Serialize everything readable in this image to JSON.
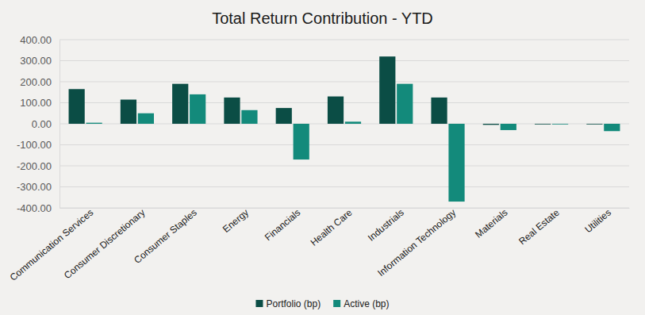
{
  "chart_data": {
    "type": "bar",
    "title": "Total Return Contribution - YTD",
    "categories": [
      "Communication Services",
      "Consumer Discretionary",
      "Consumer Staples",
      "Energy",
      "Financials",
      "Health Care",
      "Industrials",
      "Information Technology",
      "Materials",
      "Real Estate",
      "Utilities"
    ],
    "series": [
      {
        "name": "Portfolio (bp)",
        "color": "#0b4d45",
        "values": [
          165,
          115,
          190,
          125,
          75,
          130,
          320,
          125,
          -5,
          -3,
          -3
        ]
      },
      {
        "name": "Active (bp)",
        "color": "#138a7b",
        "values": [
          5,
          50,
          140,
          65,
          -170,
          10,
          190,
          -370,
          -30,
          -3,
          -35
        ]
      }
    ],
    "ylim": [
      -400,
      400
    ],
    "yticks": [
      {
        "value": -400,
        "label": "-400.00"
      },
      {
        "value": -300,
        "label": "-300.00"
      },
      {
        "value": -200,
        "label": "-200.00"
      },
      {
        "value": -100,
        "label": "-100.00"
      },
      {
        "value": 0,
        "label": "0.00"
      },
      {
        "value": 100,
        "label": "100.00"
      },
      {
        "value": 200,
        "label": "200.00"
      },
      {
        "value": 300,
        "label": "300.00"
      },
      {
        "value": 400,
        "label": "400.00"
      }
    ],
    "grid": true,
    "legend": "bottom"
  }
}
